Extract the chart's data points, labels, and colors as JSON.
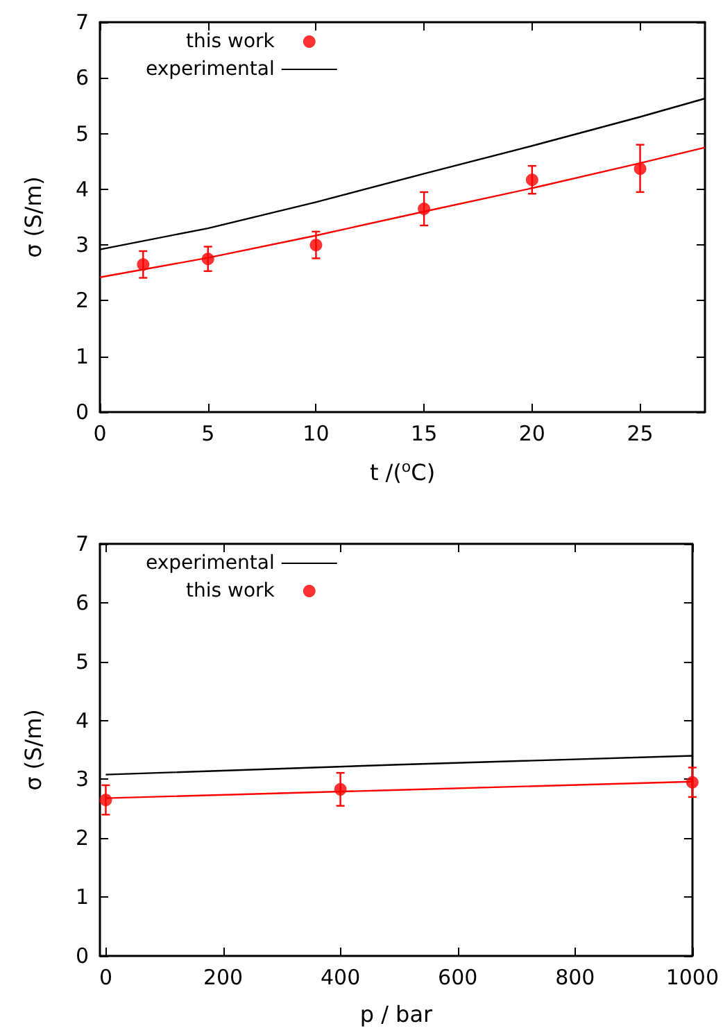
{
  "chart_data": [
    {
      "type": "line",
      "xlabel": "t /($^{o}$C)",
      "ylabel": "σ (S/m)",
      "xlim": [
        0,
        28
      ],
      "xticks": [
        0,
        5,
        10,
        15,
        20,
        25
      ],
      "ylim": [
        0,
        7
      ],
      "yticks": [
        0,
        1,
        2,
        3,
        4,
        5,
        6,
        7
      ],
      "grid": false,
      "legend": "top left",
      "series": [
        {
          "name": "this work",
          "type": "scatter",
          "marker": "circle",
          "color": "#ff0000",
          "x": [
            2,
            5,
            10,
            15,
            20,
            25
          ],
          "values": [
            2.65,
            2.75,
            3.0,
            3.65,
            4.17,
            4.37
          ],
          "errors": [
            0.24,
            0.22,
            0.24,
            0.3,
            0.25,
            [
              3.95,
              4.8
            ]
          ]
        },
        {
          "marker": "none",
          "color": "#ff0000",
          "x": [
            0,
            5,
            10,
            15,
            20,
            25,
            28
          ],
          "values": [
            2.42,
            2.77,
            3.17,
            3.6,
            4.02,
            4.47,
            4.75
          ]
        },
        {
          "name": "experimental",
          "marker": "none",
          "color": "#000000",
          "x": [
            0,
            5,
            10,
            15,
            20,
            25,
            28
          ],
          "values": [
            2.92,
            3.3,
            3.77,
            4.28,
            4.78,
            5.3,
            5.63
          ]
        }
      ]
    },
    {
      "type": "line",
      "xlabel": "p / bar",
      "ylabel": "σ (S/m)",
      "xlim": [
        -10,
        1000
      ],
      "xticks": [
        0,
        200,
        400,
        600,
        800,
        1000
      ],
      "ylim": [
        0,
        7
      ],
      "yticks": [
        0,
        1,
        2,
        3,
        4,
        5,
        6,
        7
      ],
      "grid": false,
      "legend": "top left",
      "series": [
        {
          "name": "experimental",
          "marker": "none",
          "color": "#000000",
          "x": [
            0,
            500,
            1000
          ],
          "values": [
            3.08,
            3.25,
            3.4
          ]
        },
        {
          "name": "this work",
          "type": "scatter",
          "marker": "circle",
          "color": "#ff0000",
          "x": [
            0,
            400,
            1000
          ],
          "values": [
            2.65,
            2.83,
            2.95
          ],
          "errors": [
            0.25,
            0.28,
            0.25
          ]
        },
        {
          "marker": "none",
          "color": "#ff0000",
          "x": [
            0,
            500,
            1000
          ],
          "values": [
            2.68,
            2.82,
            2.96
          ]
        }
      ]
    }
  ]
}
